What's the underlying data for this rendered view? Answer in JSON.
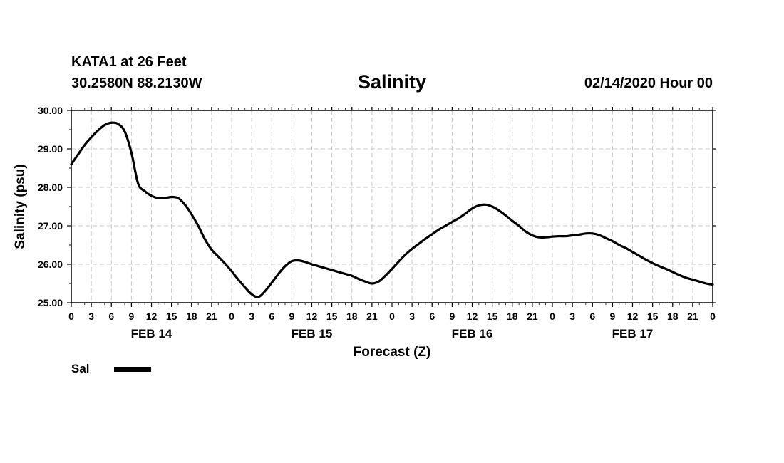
{
  "header": {
    "station": "KATA1 at 26 Feet",
    "coords": "30.2580N 88.2130W",
    "title": "Salinity",
    "datetime": "02/14/2020 Hour 00"
  },
  "legend": {
    "label": "Sal"
  },
  "chart_data": {
    "type": "line",
    "title": "Salinity",
    "xlabel": "Forecast (Z)",
    "ylabel": "Salinity (psu)",
    "ylim": [
      25.0,
      30.0
    ],
    "yticks": [
      "25.00",
      "26.00",
      "27.00",
      "28.00",
      "29.00",
      "30.00"
    ],
    "xlim": [
      0,
      96
    ],
    "xtick_hours": [
      0,
      3,
      6,
      9,
      12,
      15,
      18,
      21,
      24,
      27,
      30,
      33,
      36,
      39,
      42,
      45,
      48,
      51,
      54,
      57,
      60,
      63,
      66,
      69,
      72,
      75,
      78,
      81,
      84,
      87,
      90,
      93,
      96
    ],
    "xtick_labels": [
      "0",
      "3",
      "6",
      "9",
      "12",
      "15",
      "18",
      "21",
      "0",
      "3",
      "6",
      "9",
      "12",
      "15",
      "18",
      "21",
      "0",
      "3",
      "6",
      "9",
      "12",
      "15",
      "18",
      "21",
      "0",
      "3",
      "6",
      "9",
      "12",
      "15",
      "18",
      "21",
      "0"
    ],
    "days": [
      {
        "label": "FEB 14",
        "hour": 12
      },
      {
        "label": "FEB 15",
        "hour": 36
      },
      {
        "label": "FEB 16",
        "hour": 60
      },
      {
        "label": "FEB 17",
        "hour": 84
      }
    ],
    "grid": true,
    "legend_position": "bottom-left",
    "series": [
      {
        "name": "Sal",
        "color": "#000000",
        "x": [
          0,
          1,
          2,
          3,
          4,
          5,
          6,
          7,
          8,
          9,
          10,
          11,
          12,
          13,
          14,
          15,
          16,
          17,
          18,
          19,
          20,
          21,
          22,
          23,
          24,
          25,
          26,
          27,
          28,
          29,
          30,
          31,
          32,
          33,
          34,
          35,
          36,
          37,
          38,
          39,
          40,
          41,
          42,
          43,
          44,
          45,
          46,
          47,
          48,
          49,
          50,
          51,
          52,
          53,
          54,
          55,
          56,
          57,
          58,
          59,
          60,
          61,
          62,
          63,
          64,
          65,
          66,
          67,
          68,
          69,
          70,
          71,
          72,
          73,
          74,
          75,
          76,
          77,
          78,
          79,
          80,
          81,
          82,
          83,
          84,
          85,
          86,
          87,
          88,
          89,
          90,
          91,
          92,
          93,
          94,
          95,
          96
        ],
        "y": [
          28.6,
          28.85,
          29.1,
          29.3,
          29.48,
          29.62,
          29.68,
          29.65,
          29.45,
          28.9,
          28.1,
          27.9,
          27.78,
          27.72,
          27.72,
          27.75,
          27.72,
          27.55,
          27.3,
          27.0,
          26.65,
          26.38,
          26.2,
          26.02,
          25.82,
          25.6,
          25.4,
          25.22,
          25.15,
          25.3,
          25.52,
          25.75,
          25.95,
          26.08,
          26.1,
          26.06,
          26.0,
          25.95,
          25.9,
          25.85,
          25.8,
          25.75,
          25.7,
          25.62,
          25.55,
          25.5,
          25.55,
          25.7,
          25.88,
          26.07,
          26.25,
          26.4,
          26.53,
          26.66,
          26.78,
          26.9,
          27.0,
          27.1,
          27.2,
          27.32,
          27.45,
          27.53,
          27.55,
          27.5,
          27.4,
          27.27,
          27.13,
          27.0,
          26.85,
          26.75,
          26.7,
          26.7,
          26.72,
          26.73,
          26.73,
          26.75,
          26.77,
          26.8,
          26.8,
          26.76,
          26.68,
          26.6,
          26.5,
          26.42,
          26.32,
          26.22,
          26.12,
          26.03,
          25.95,
          25.88,
          25.8,
          25.72,
          25.65,
          25.6,
          25.55,
          25.5,
          25.47
        ]
      }
    ]
  }
}
